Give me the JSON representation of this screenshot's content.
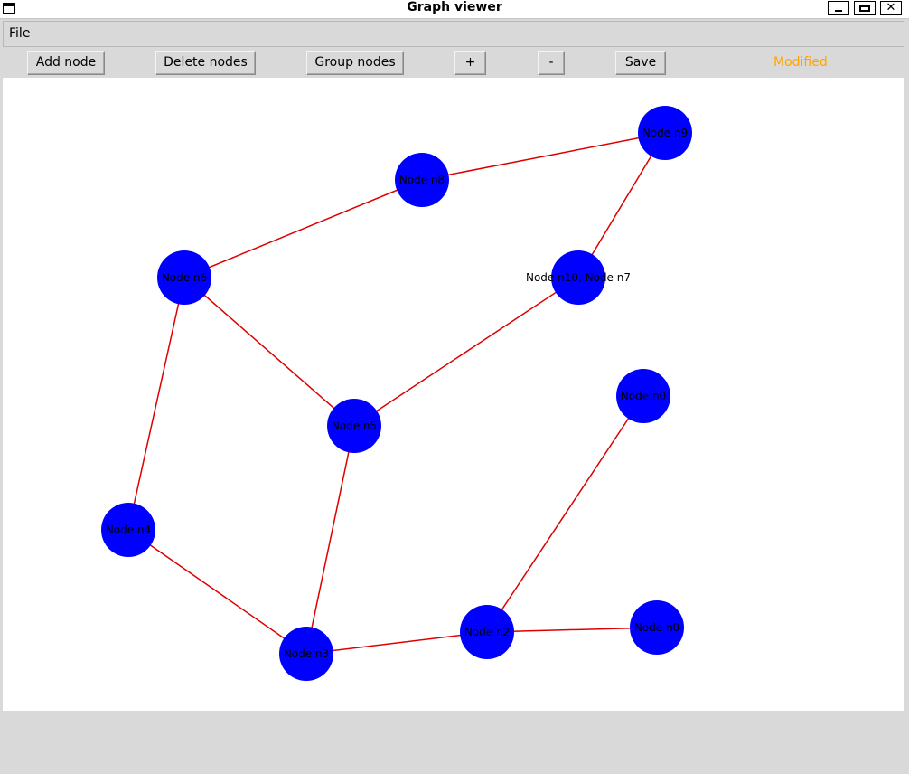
{
  "window": {
    "title": "Graph viewer"
  },
  "menu": {
    "file": "File"
  },
  "toolbar": {
    "add_node": "Add node",
    "delete_nodes": "Delete nodes",
    "group_nodes": "Group nodes",
    "zoom_in": "+",
    "zoom_out": "-",
    "save": "Save",
    "status": "Modified",
    "status_color": "#ffa500"
  },
  "graph": {
    "node_color": "#0000ff",
    "edge_color": "#dd0000",
    "nodes": [
      {
        "id": "n9",
        "label": "Node n9"
      },
      {
        "id": "n8",
        "label": "Node n8"
      },
      {
        "id": "n6",
        "label": "Node n6"
      },
      {
        "id": "n10",
        "label": "Node n10, Node n7"
      },
      {
        "id": "n0a",
        "label": "Node n0"
      },
      {
        "id": "n5",
        "label": "Node n5"
      },
      {
        "id": "n4",
        "label": "Node n4"
      },
      {
        "id": "n3",
        "label": "Node n3"
      },
      {
        "id": "n2",
        "label": "Node n2"
      },
      {
        "id": "n0b",
        "label": "Node n0"
      }
    ],
    "edges": [
      [
        "n8",
        "n9"
      ],
      [
        "n9",
        "n10"
      ],
      [
        "n6",
        "n8"
      ],
      [
        "n6",
        "n5"
      ],
      [
        "n6",
        "n4"
      ],
      [
        "n5",
        "n10"
      ],
      [
        "n5",
        "n3"
      ],
      [
        "n4",
        "n3"
      ],
      [
        "n3",
        "n2"
      ],
      [
        "n2",
        "n0a"
      ],
      [
        "n2",
        "n0b"
      ]
    ]
  }
}
